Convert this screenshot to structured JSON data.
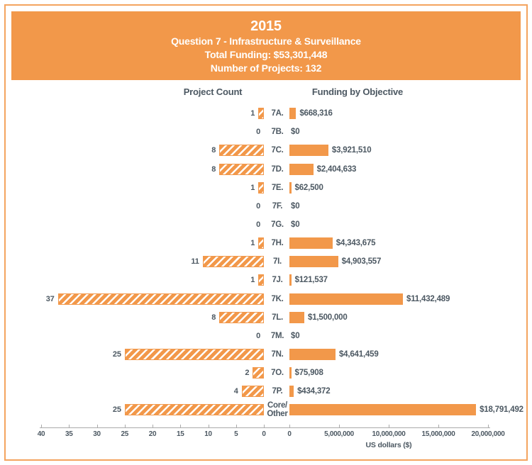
{
  "header": {
    "title": "2015",
    "subtitle": "Question 7 - Infrastructure & Surveillance",
    "total_funding": "Total Funding: $53,301,448",
    "project_count": "Number of Projects: 132"
  },
  "chart_data": {
    "type": "bar",
    "title": "2015 - Question 7 - Infrastructure & Surveillance",
    "left_title": "Project Count",
    "right_title": "Funding by Objective",
    "categories": [
      "7A.",
      "7B.",
      "7C.",
      "7D.",
      "7E.",
      "7F.",
      "7G.",
      "7H.",
      "7I.",
      "7J.",
      "7K.",
      "7L.",
      "7M.",
      "7N.",
      "7O.",
      "7P.",
      "Core/\nOther"
    ],
    "series": [
      {
        "name": "Project Count",
        "values": [
          1,
          0,
          8,
          8,
          1,
          0,
          0,
          1,
          11,
          1,
          37,
          8,
          0,
          25,
          2,
          4,
          25
        ]
      },
      {
        "name": "Funding by Objective",
        "values": [
          668316,
          0,
          3921510,
          2404633,
          62500,
          0,
          0,
          4343675,
          4903557,
          121537,
          11432489,
          1500000,
          0,
          4641459,
          75908,
          434372,
          18791492
        ],
        "labels": [
          "$668,316",
          "$0",
          "$3,921,510",
          "$2,404,633",
          "$62,500",
          "$0",
          "$0",
          "$4,343,675",
          "$4,903,557",
          "$121,537",
          "$11,432,489",
          "$1,500,000",
          "$0",
          "$4,641,459",
          "$75,908",
          "$434,372",
          "$18,791,492"
        ]
      }
    ],
    "count_axis": {
      "ticks": [
        40,
        35,
        30,
        25,
        20,
        15,
        10,
        5,
        0
      ],
      "max": 40
    },
    "funding_axis": {
      "ticks": [
        "0",
        "5,000,000",
        "10,000,000",
        "15,000,000",
        "20,000,000"
      ],
      "tick_values": [
        0,
        5000000,
        10000000,
        15000000,
        20000000
      ],
      "label": "US dollars ($)",
      "max": 20000000
    },
    "legend_position": "none",
    "grid": false,
    "colors": {
      "bar": "#f2984a",
      "text": "#4c5862",
      "axis": "#ababab",
      "banner_bg": "#f2984a",
      "banner_text": "#ffffff"
    }
  }
}
